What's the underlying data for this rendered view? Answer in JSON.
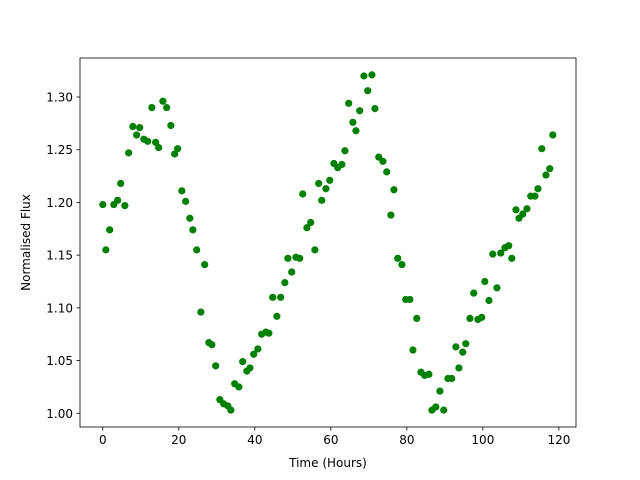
{
  "chart_data": {
    "type": "scatter",
    "x_label": "Time (Hours)",
    "y_label": "Normalised Flux",
    "color": "#008000",
    "grid": false,
    "xlim": [
      -6,
      124.5
    ],
    "ylim": [
      0.987,
      1.337
    ],
    "xticks": [
      0,
      20,
      40,
      60,
      80,
      100,
      120
    ],
    "yticks": [
      {
        "value": 1.0,
        "label": "1.00"
      },
      {
        "value": 1.05,
        "label": "1.05"
      },
      {
        "value": 1.1,
        "label": "1.10"
      },
      {
        "value": 1.15,
        "label": "1.15"
      },
      {
        "value": 1.2,
        "label": "1.20"
      },
      {
        "value": 1.25,
        "label": "1.25"
      },
      {
        "value": 1.3,
        "label": "1.30"
      }
    ],
    "x": [
      0,
      0.8,
      1.8,
      2.9,
      3.9,
      4.7,
      5.8,
      6.8,
      7.9,
      8.9,
      9.7,
      10.8,
      11.8,
      12.9,
      13.9,
      14.7,
      15.8,
      16.8,
      17.9,
      18.9,
      19.7,
      20.8,
      21.8,
      22.9,
      23.7,
      24.7,
      25.8,
      26.8,
      27.9,
      28.7,
      29.7,
      30.8,
      31.8,
      32.9,
      33.7,
      34.7,
      35.8,
      36.8,
      37.9,
      38.7,
      39.7,
      40.8,
      41.8,
      42.9,
      43.7,
      44.7,
      45.8,
      46.8,
      47.9,
      48.7,
      49.7,
      50.8,
      51.8,
      52.6,
      53.7,
      54.7,
      55.8,
      56.8,
      57.6,
      58.7,
      59.7,
      60.8,
      61.8,
      62.9,
      63.7,
      64.7,
      65.8,
      66.6,
      67.6,
      68.7,
      69.7,
      70.8,
      71.6,
      72.6,
      73.7,
      74.7,
      75.8,
      76.6,
      77.6,
      78.7,
      79.7,
      80.8,
      81.6,
      82.6,
      83.7,
      84.7,
      85.8,
      86.6,
      87.6,
      88.7,
      89.7,
      90.8,
      91.8,
      92.9,
      93.7,
      94.7,
      95.5,
      96.6,
      97.6,
      98.7,
      99.7,
      100.5,
      101.6,
      102.6,
      103.7,
      104.7,
      105.8,
      106.8,
      107.6,
      108.7,
      109.5,
      110.5,
      111.6,
      112.6,
      113.7,
      114.5,
      115.5,
      116.6,
      117.6,
      118.4
    ],
    "values": [
      1.198,
      1.155,
      1.174,
      1.198,
      1.202,
      1.218,
      1.197,
      1.247,
      1.272,
      1.264,
      1.271,
      1.26,
      1.258,
      1.29,
      1.257,
      1.252,
      1.296,
      1.29,
      1.273,
      1.246,
      1.251,
      1.211,
      1.201,
      1.185,
      1.174,
      1.155,
      1.096,
      1.141,
      1.067,
      1.065,
      1.045,
      1.013,
      1.009,
      1.007,
      1.003,
      1.028,
      1.025,
      1.049,
      1.04,
      1.043,
      1.056,
      1.061,
      1.075,
      1.077,
      1.076,
      1.11,
      1.092,
      1.11,
      1.124,
      1.147,
      1.134,
      1.148,
      1.147,
      1.208,
      1.176,
      1.181,
      1.155,
      1.218,
      1.202,
      1.213,
      1.221,
      1.237,
      1.233,
      1.236,
      1.249,
      1.294,
      1.276,
      1.268,
      1.287,
      1.32,
      1.306,
      1.321,
      1.289,
      1.243,
      1.239,
      1.229,
      1.188,
      1.212,
      1.147,
      1.141,
      1.108,
      1.108,
      1.06,
      1.09,
      1.039,
      1.036,
      1.037,
      1.003,
      1.006,
      1.021,
      1.003,
      1.033,
      1.033,
      1.063,
      1.043,
      1.058,
      1.066,
      1.09,
      1.114,
      1.089,
      1.091,
      1.125,
      1.107,
      1.151,
      1.119,
      1.152,
      1.157,
      1.159,
      1.147,
      1.193,
      1.185,
      1.189,
      1.194,
      1.206,
      1.206,
      1.213,
      1.251,
      1.226,
      1.232,
      1.264
    ]
  }
}
